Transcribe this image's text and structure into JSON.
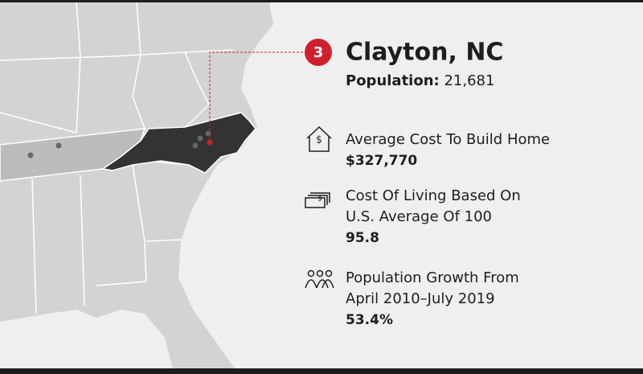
{
  "badge": "3",
  "title": "Clayton, NC",
  "population": {
    "label": "Population:",
    "value": "21,681"
  },
  "stats": [
    {
      "label_lines": [
        "Average Cost To Build Home"
      ],
      "value": "$327,770"
    },
    {
      "label_lines": [
        "Cost Of Living Based On",
        "U.S. Average Of 100"
      ],
      "value": "95.8"
    },
    {
      "label_lines": [
        "Population Growth From",
        "April 2010–July 2019"
      ],
      "value": "53.4%"
    }
  ]
}
